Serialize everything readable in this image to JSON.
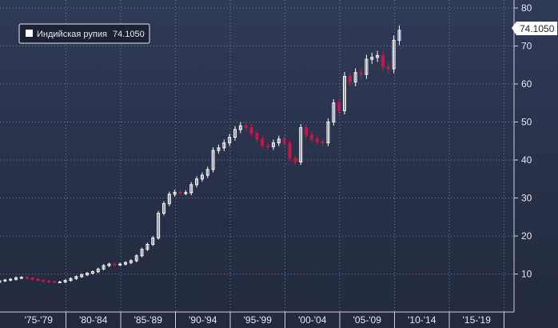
{
  "legend": {
    "label": "Индийская рупия",
    "value": "74.1050"
  },
  "colors": {
    "background_top": "#2f3a57",
    "background_bottom": "#232a3e",
    "grid": "#6f7c98",
    "axis": "#c9d0dc",
    "text": "#e6e9f0",
    "candle_up": "#ffffff",
    "candle_down": "#c8154a"
  },
  "chart_data": {
    "type": "candlestick",
    "title": "",
    "xlabel": "",
    "ylabel": "",
    "ylim": [
      0,
      82
    ],
    "yticks": [
      10,
      20,
      30,
      40,
      50,
      60,
      70,
      80
    ],
    "x_tick_labels": [
      "'75-'79",
      "'80-'84",
      "'85-'89",
      "'90-'94",
      "'95-'99",
      "'00-'04",
      "'05-'09",
      "'10-'14",
      "'15-'19"
    ],
    "grid": true,
    "legend_position": "top-left",
    "last_value": 74.105,
    "series": [
      {
        "name": "Индийская рупия",
        "x_start": 1973,
        "x_step": 0.5,
        "close": [
          7.8,
          8.2,
          8.4,
          8.6,
          9.0,
          9.1,
          8.9,
          8.6,
          8.3,
          8.1,
          8.0,
          7.9,
          7.9,
          8.3,
          8.8,
          9.3,
          9.8,
          10.2,
          10.6,
          11.3,
          12.2,
          12.6,
          12.5,
          12.6,
          13.0,
          13.5,
          14.8,
          16.5,
          17.8,
          19.5,
          26.0,
          28.5,
          31.0,
          31.5,
          31.4,
          31.4,
          33.5,
          35.0,
          36.0,
          37.5,
          42.5,
          43.2,
          44.5,
          46.0,
          48.0,
          49.0,
          48.5,
          47.0,
          45.5,
          43.8,
          43.5,
          44.5,
          45.5,
          44.5,
          40.5,
          39.5,
          48.5,
          46.5,
          45.5,
          44.8,
          44.5,
          50.0,
          55.0,
          53.0,
          62.0,
          60.5,
          63.0,
          62.5,
          66.5,
          67.0,
          67.5,
          64.5,
          64.0,
          71.5,
          74.1
        ]
      }
    ]
  }
}
